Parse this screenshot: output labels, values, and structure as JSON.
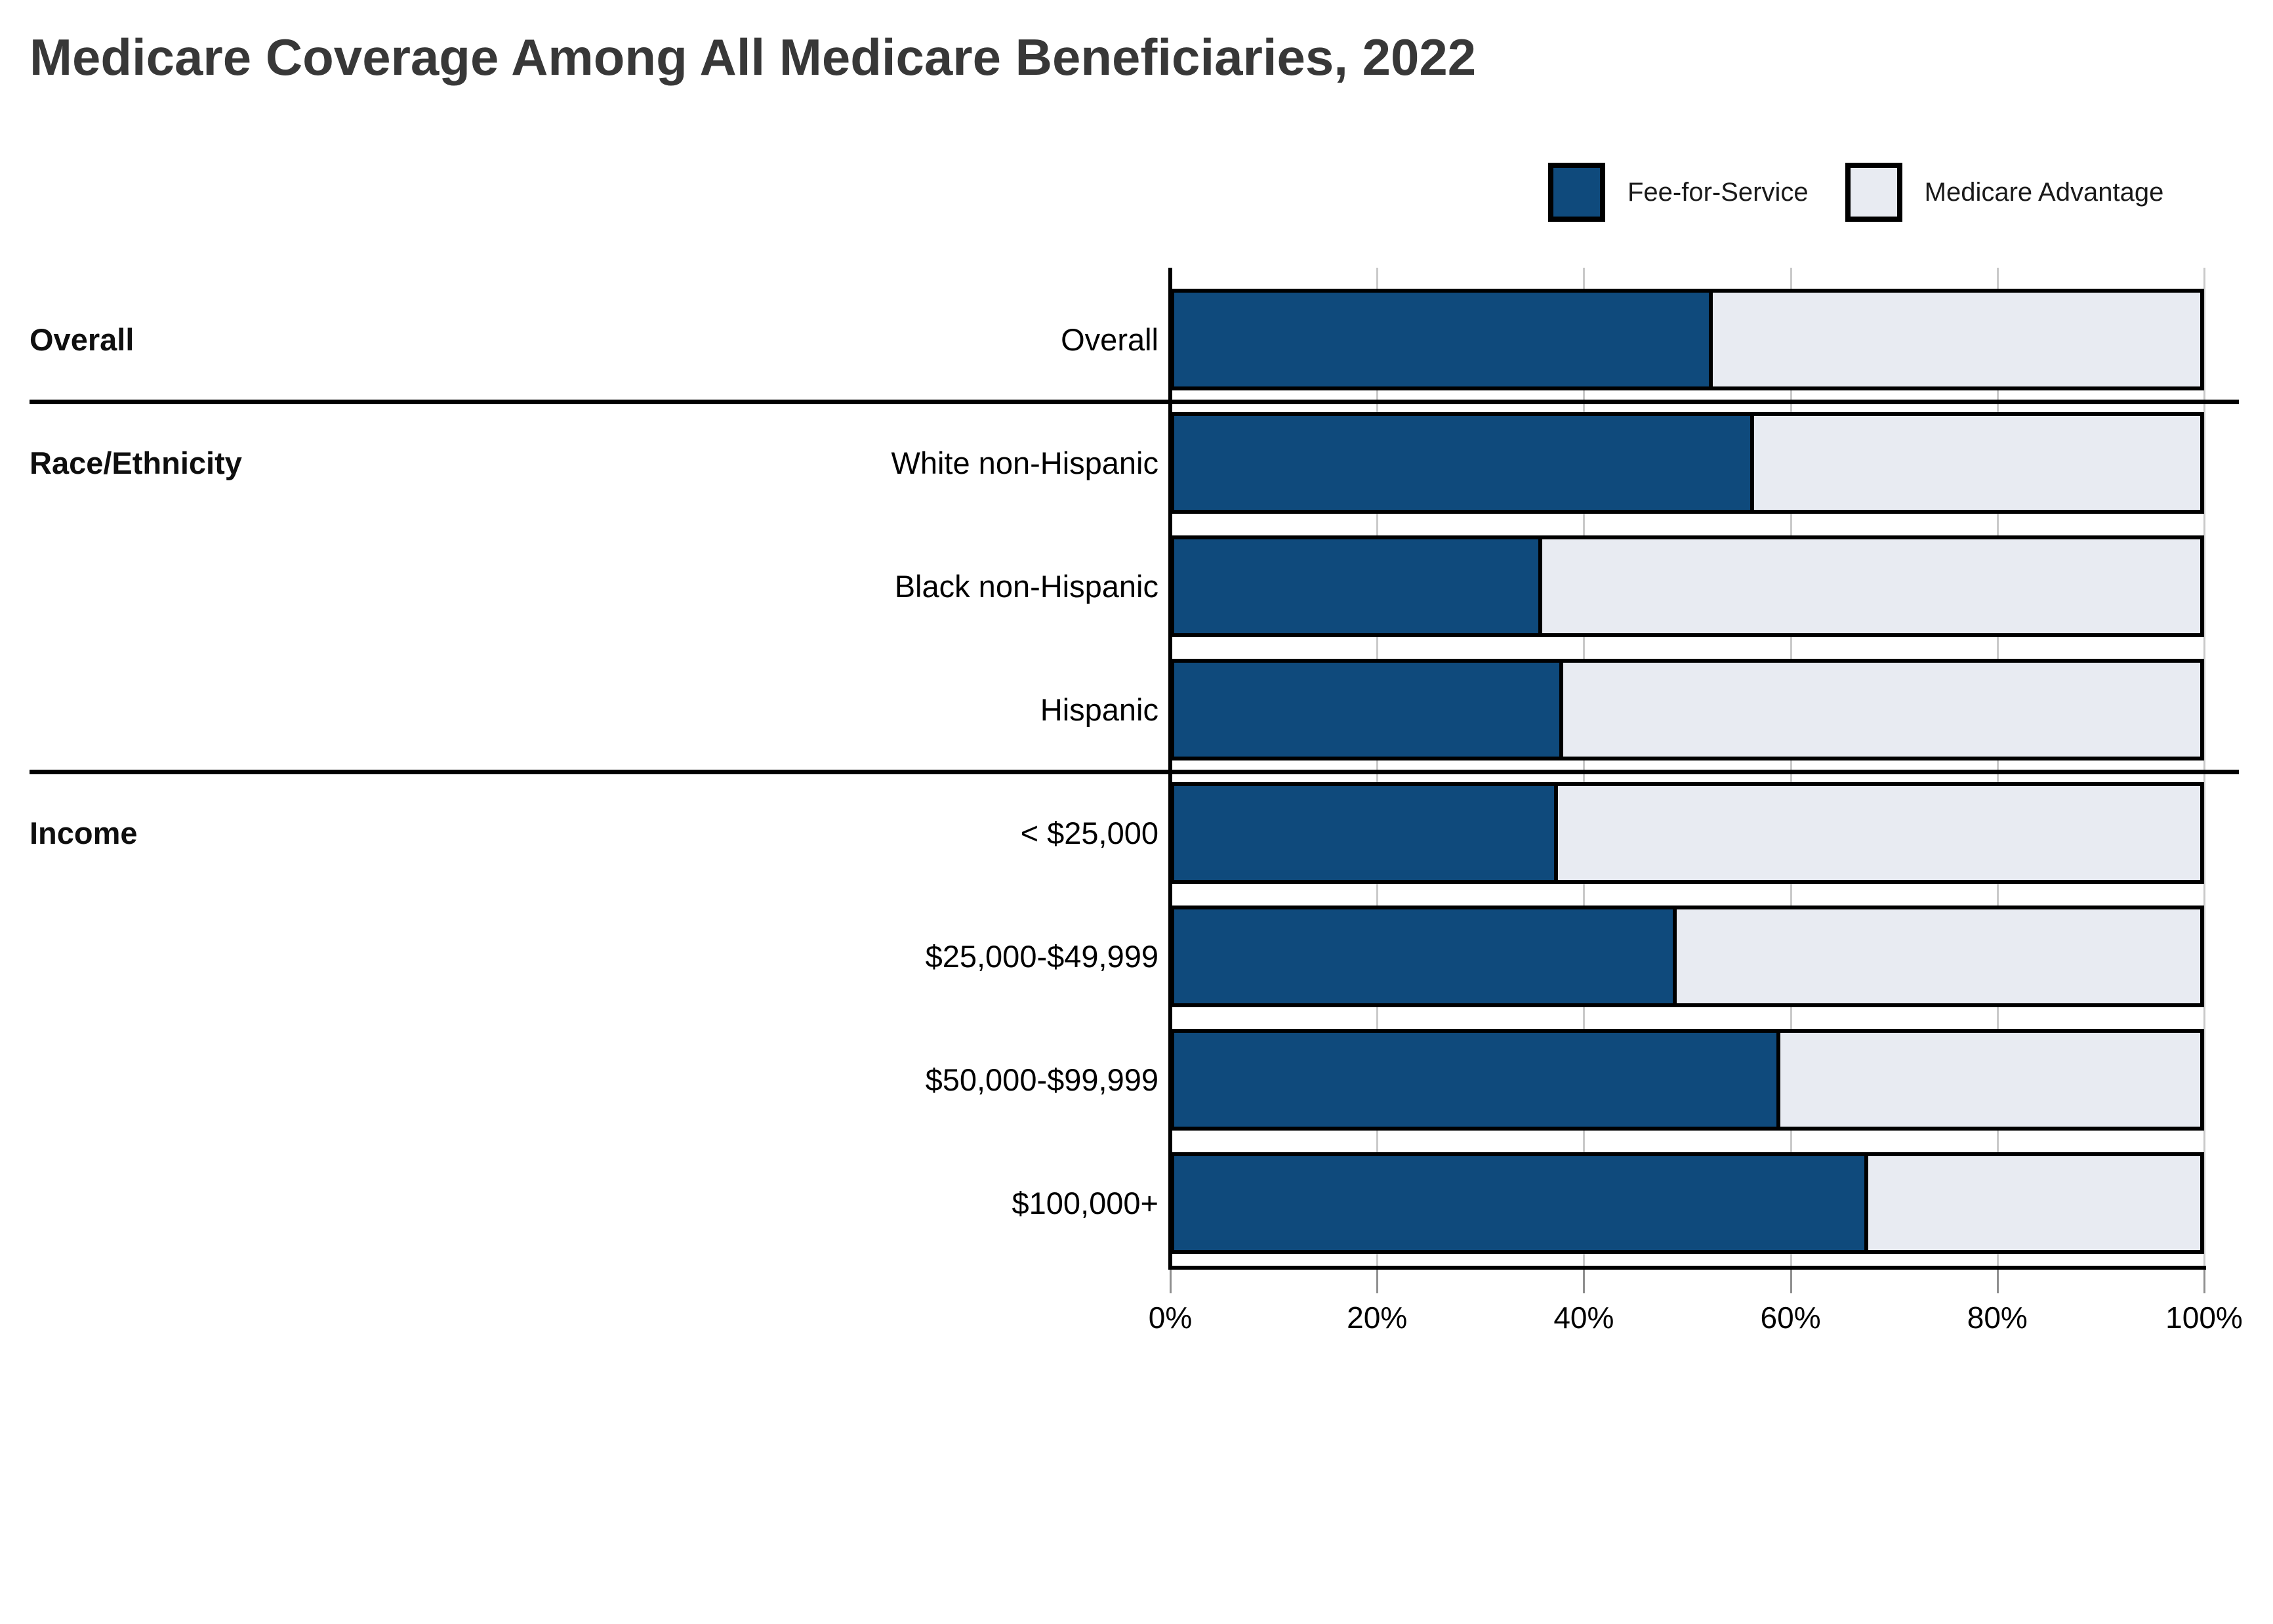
{
  "title": "Medicare Coverage Among All Medicare Beneficiaries, 2022",
  "colors": {
    "fee_for_service": "#0f4a7c",
    "medicare_advantage": "#e8ebf2",
    "bar_border": "#000000",
    "gridline": "#c9c9c9",
    "title_text": "#383838"
  },
  "legend": {
    "items": [
      {
        "label": "Fee-for-Service",
        "color": "#0f4a7c"
      },
      {
        "label": "Medicare Advantage",
        "color": "#e8ebf2"
      }
    ]
  },
  "chart_data": {
    "type": "bar",
    "orientation": "horizontal",
    "stacked": true,
    "title": "Medicare Coverage Among All Medicare Beneficiaries, 2022",
    "categories": [
      "Overall",
      "White non-Hispanic",
      "Black non-Hispanic",
      "Hispanic",
      "< $25,000",
      "$25,000-$49,999",
      "$50,000-$99,999",
      "$100,000+"
    ],
    "category_groups": [
      {
        "label": "Overall",
        "first_category_index": 0,
        "count": 1
      },
      {
        "label": "Race/Ethnicity",
        "first_category_index": 1,
        "count": 3
      },
      {
        "label": "Income",
        "first_category_index": 4,
        "count": 4
      }
    ],
    "series": [
      {
        "name": "Fee-for-Service",
        "color": "#0f4a7c",
        "values": [
          52.5,
          56.5,
          36,
          38,
          37.5,
          49,
          59,
          67.5
        ]
      },
      {
        "name": "Medicare Advantage",
        "color": "#e8ebf2",
        "values": [
          47.5,
          43.5,
          64,
          62,
          62.5,
          51,
          41,
          32.5
        ]
      }
    ],
    "xlabel": "",
    "ylabel": "",
    "xlim": [
      0,
      100
    ],
    "x_ticks": [
      0,
      20,
      40,
      60,
      80,
      100
    ],
    "x_tick_labels": [
      "0%",
      "20%",
      "40%",
      "60%",
      "80%",
      "100%"
    ],
    "grid": true,
    "legend_position": "top-right"
  }
}
